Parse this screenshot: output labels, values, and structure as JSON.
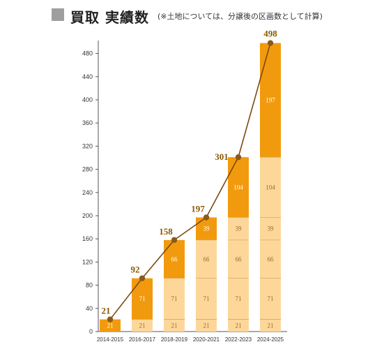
{
  "header": {
    "title": "買取 実績数",
    "note": "(※土地については、分譲後の区画数として計算)"
  },
  "colors": {
    "past": "#fdd79a",
    "new": "#f29a0e",
    "line": "#7a4a10",
    "marker": "#8a5a1a",
    "axis": "#555555"
  },
  "chart_data": {
    "type": "bar",
    "stacked": true,
    "categories": [
      "2014-2015",
      "2016-2017",
      "2018-2019",
      "2020-2021",
      "2022-2023",
      "2024-2025"
    ],
    "segments_per_category": [
      [
        21
      ],
      [
        21,
        71
      ],
      [
        21,
        71,
        66
      ],
      [
        21,
        71,
        66,
        39
      ],
      [
        21,
        71,
        66,
        39,
        104
      ],
      [
        21,
        71,
        66,
        39,
        104,
        197
      ]
    ],
    "totals": [
      21,
      92,
      158,
      197,
      301,
      498
    ],
    "ylim": [
      0,
      500
    ],
    "yticks": [
      0,
      40,
      80,
      120,
      160,
      200,
      240,
      280,
      320,
      360,
      400,
      440,
      480
    ],
    "grid": false,
    "overlay_line": "cumulative totals"
  }
}
